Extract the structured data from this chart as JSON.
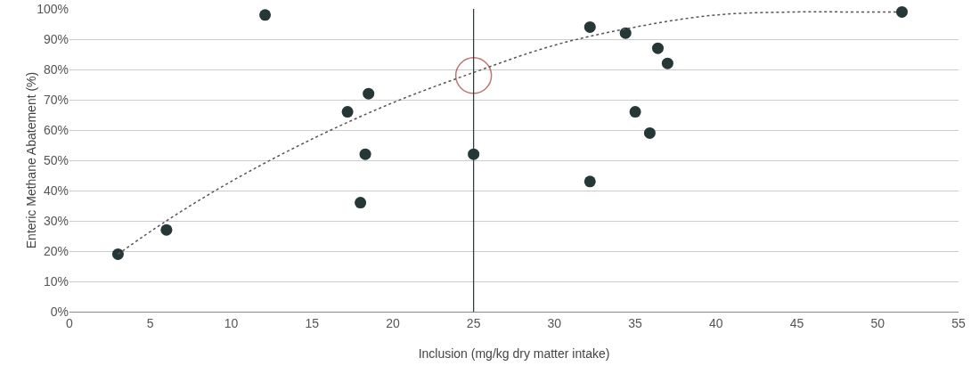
{
  "chart_data": {
    "type": "scatter",
    "xlabel": "Inclusion (mg/kg dry matter intake)",
    "ylabel": "Enteric Methane Abatement (%)",
    "series": [
      {
        "color": "#263737",
        "marker": "circle",
        "x": [
          3,
          6,
          12.1,
          17.2,
          18.5,
          18.3,
          18,
          25,
          32.2,
          32.2,
          34.4,
          36.4,
          37,
          35,
          35.9,
          51.5
        ],
        "values": [
          19,
          27,
          98,
          66,
          72,
          52,
          36,
          52,
          94,
          43,
          92,
          87,
          82,
          66,
          59,
          99
        ]
      },
      {
        "type": "line",
        "color": "#555555",
        "line_style": "dotted",
        "marker": "none",
        "x": [
          3,
          6,
          10,
          15,
          20,
          25,
          30,
          35,
          40,
          45,
          48,
          51.3
        ],
        "values": [
          19,
          30,
          43,
          57,
          69,
          79,
          88,
          94,
          98,
          99,
          99,
          99
        ]
      },
      {
        "type": "bubble",
        "color": "#a33a3a",
        "x": [
          25
        ],
        "values": [
          78
        ],
        "sizes": [
          1
        ]
      }
    ],
    "xlim": [
      0,
      55
    ],
    "xticks": [
      0,
      5,
      10,
      15,
      20,
      25,
      30,
      35,
      40,
      45,
      50,
      55
    ],
    "ylim": [
      0,
      100
    ],
    "yticks": [
      {
        "value": 0,
        "label": "0%"
      },
      {
        "value": 10,
        "label": "10%"
      },
      {
        "value": 20,
        "label": "20%"
      },
      {
        "value": 30,
        "label": "30%"
      },
      {
        "value": 40,
        "label": "40%"
      },
      {
        "value": 50,
        "label": "50%"
      },
      {
        "value": 60,
        "label": "60%"
      },
      {
        "value": 70,
        "label": "70%"
      },
      {
        "value": 80,
        "label": "80%"
      },
      {
        "value": 90,
        "label": "90%"
      },
      {
        "value": 100,
        "label": "100%"
      }
    ],
    "grid": "y",
    "ref_lines": [
      {
        "axis": "x",
        "value": 25,
        "color": "#263737",
        "line_style": "solid"
      }
    ]
  }
}
